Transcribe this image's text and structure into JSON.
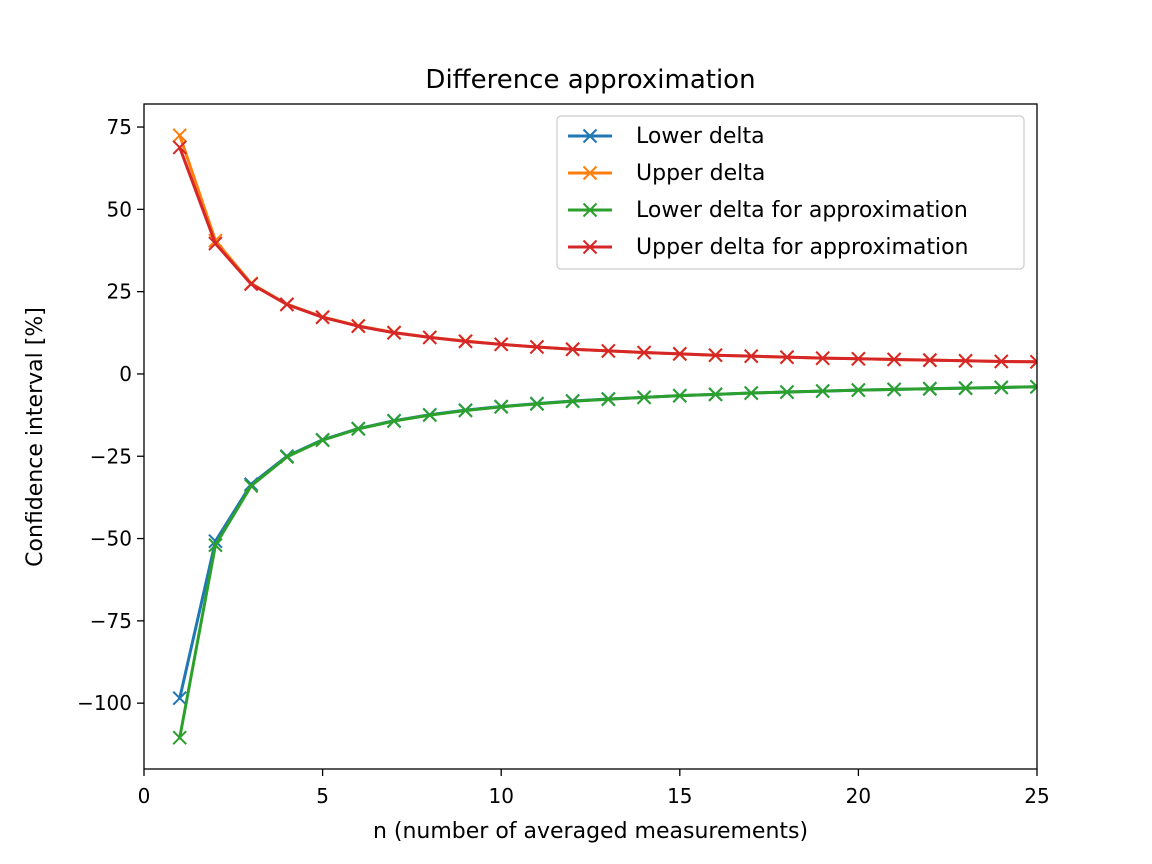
{
  "chart_data": {
    "type": "line",
    "title": "Difference approximation",
    "xlabel": "n (number of averaged measurements)",
    "ylabel": "Confidence interval [%]",
    "xlim": [
      0,
      25
    ],
    "ylim": [
      -120,
      82
    ],
    "xticks": [
      0,
      5,
      10,
      15,
      20,
      25
    ],
    "xtick_labels": [
      "0",
      "5",
      "10",
      "15",
      "20",
      "25"
    ],
    "yticks": [
      75,
      50,
      25,
      0,
      -25,
      -50,
      -75,
      -100
    ],
    "ytick_labels": [
      "75",
      "50",
      "25",
      "0",
      "−25",
      "−50",
      "−75",
      "−100"
    ],
    "grid": false,
    "legend_position": "upper right",
    "x": [
      1,
      2,
      3,
      4,
      5,
      6,
      7,
      8,
      9,
      10,
      11,
      12,
      13,
      14,
      15,
      16,
      17,
      18,
      19,
      20,
      21,
      22,
      23,
      24,
      25
    ],
    "series": [
      {
        "name": "Lower delta",
        "color": "#1f77b4",
        "marker": "x",
        "values": [
          -98.5,
          -50.8,
          -33.5,
          -25.0,
          -20.0,
          -16.6,
          -14.2,
          -12.4,
          -11.0,
          -9.9,
          -9.0,
          -8.2,
          -7.6,
          -7.1,
          -6.6,
          -6.2,
          -5.8,
          -5.5,
          -5.2,
          -4.9,
          -4.7,
          -4.5,
          -4.3,
          -4.1,
          -3.9
        ]
      },
      {
        "name": "Upper delta",
        "color": "#ff7f0e",
        "marker": "x",
        "values": [
          72.5,
          40.5,
          27.5,
          21.2,
          17.3,
          14.6,
          12.6,
          11.1,
          10.0,
          9.0,
          8.2,
          7.5,
          7.0,
          6.5,
          6.1,
          5.7,
          5.4,
          5.1,
          4.8,
          4.6,
          4.4,
          4.2,
          4.0,
          3.8,
          3.7
        ]
      },
      {
        "name": "Lower delta for approximation",
        "color": "#2ca02c",
        "marker": "x",
        "values": [
          -110.5,
          -52.0,
          -34.0,
          -25.2,
          -20.1,
          -16.7,
          -14.3,
          -12.5,
          -11.1,
          -10.0,
          -9.1,
          -8.3,
          -7.7,
          -7.1,
          -6.6,
          -6.2,
          -5.8,
          -5.5,
          -5.2,
          -4.9,
          -4.7,
          -4.5,
          -4.3,
          -4.1,
          -3.9
        ]
      },
      {
        "name": "Upper delta for approximation",
        "color": "#d62728",
        "marker": "x",
        "values": [
          68.8,
          39.6,
          27.3,
          21.1,
          17.2,
          14.5,
          12.5,
          11.1,
          9.9,
          9.0,
          8.2,
          7.5,
          7.0,
          6.5,
          6.1,
          5.7,
          5.4,
          5.1,
          4.8,
          4.6,
          4.4,
          4.2,
          4.0,
          3.8,
          3.7
        ]
      }
    ]
  }
}
